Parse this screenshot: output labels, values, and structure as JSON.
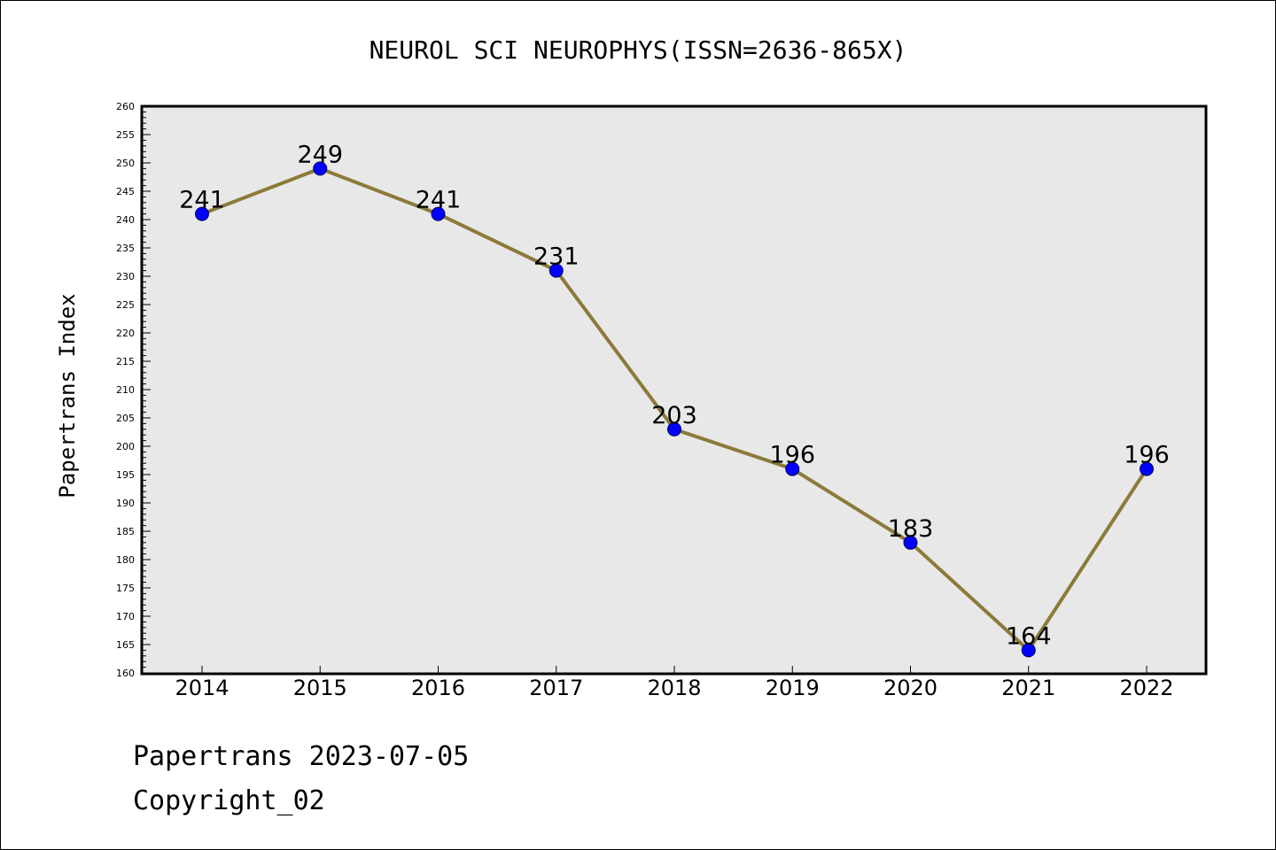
{
  "chart_data": {
    "type": "line",
    "title": "NEUROL SCI NEUROPHYS(ISSN=2636-865X)",
    "xlabel": "",
    "ylabel": "Papertrans Index",
    "categories": [
      "2014",
      "2015",
      "2016",
      "2017",
      "2018",
      "2019",
      "2020",
      "2021",
      "2022"
    ],
    "series": [
      {
        "values": [
          241,
          249,
          241,
          231,
          203,
          196,
          183,
          164,
          196
        ]
      }
    ],
    "ylim": [
      160,
      260
    ],
    "y_major_step": 5,
    "y_minor_step": 1,
    "grid": false,
    "legend": "none",
    "colors": {
      "line": "#8c7a3a",
      "marker_fill": "#0000ff",
      "marker_stroke": "#000066",
      "plot_bg": "#e8e8e8"
    }
  },
  "footer": {
    "line1": "Papertrans 2023-07-05",
    "line2": "Copyright_02"
  }
}
